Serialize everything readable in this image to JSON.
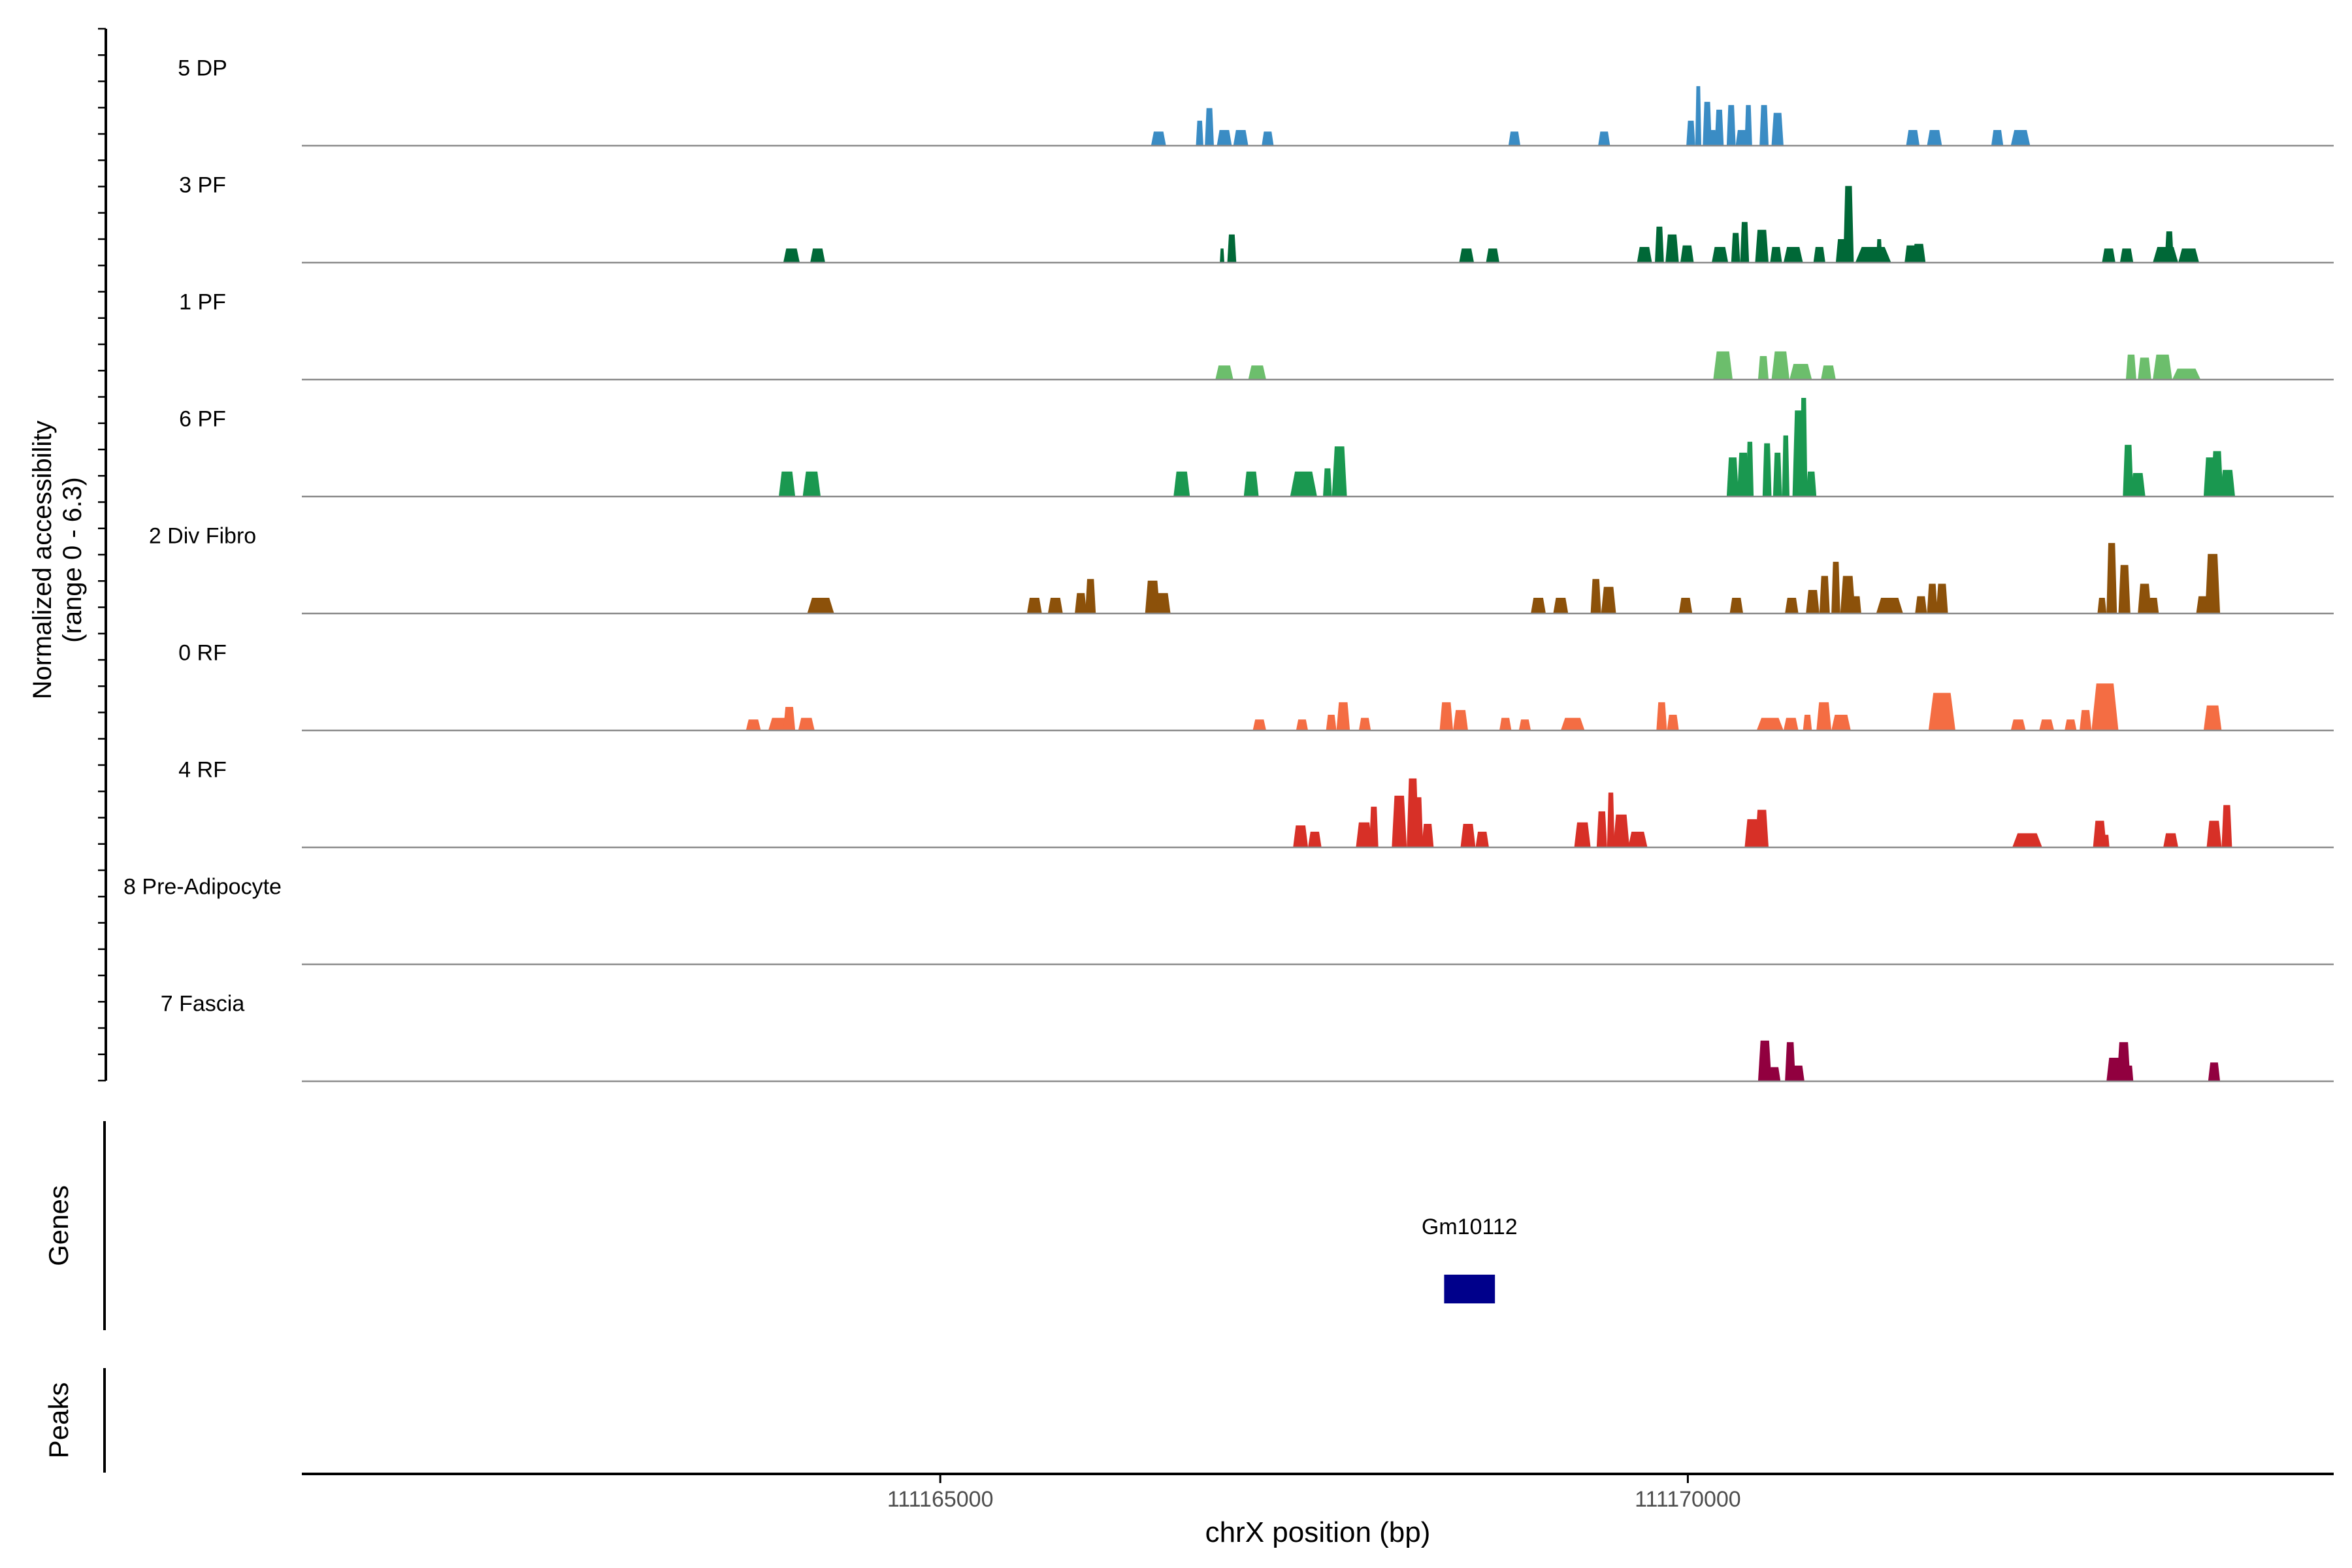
{
  "chart_data": {
    "type": "area",
    "genome": {
      "chromosome": "chrX",
      "xlim": [
        111160730,
        111174320
      ],
      "ticks": [
        111165000,
        111170000
      ],
      "tick_labels": [
        "111165000",
        "111170000"
      ]
    },
    "axes": {
      "xlabel": "chrX position (bp)",
      "ylabel_line1": "Normalized accessibility",
      "ylabel_line2": "(range 0 - 6.3)",
      "y_range": [
        0,
        6.3
      ],
      "genes_label": "Genes",
      "peaks_label": "Peaks"
    },
    "tracks": [
      {
        "name": "5 DP",
        "color": "#3A8CC4",
        "peaks": [
          [
            111166410,
            111166510,
            0.9
          ],
          [
            111166710,
            111166760,
            1.6
          ],
          [
            111166770,
            111166830,
            2.4
          ],
          [
            111166850,
            111166950,
            1.0
          ],
          [
            111166960,
            111167060,
            1.0
          ],
          [
            111167150,
            111167230,
            0.9
          ],
          [
            111168800,
            111168880,
            0.9
          ],
          [
            111169400,
            111169480,
            0.9
          ],
          [
            111169990,
            111170050,
            1.6
          ],
          [
            111170050,
            111170090,
            3.8
          ],
          [
            111170100,
            111170160,
            2.8
          ],
          [
            111170110,
            111170200,
            1.0
          ],
          [
            111170180,
            111170240,
            2.3
          ],
          [
            111170260,
            111170320,
            2.6
          ],
          [
            111170320,
            111170400,
            1.0
          ],
          [
            111170380,
            111170430,
            2.6
          ],
          [
            111170480,
            111170540,
            2.6
          ],
          [
            111170560,
            111170640,
            2.1
          ],
          [
            111171460,
            111171550,
            1.0
          ],
          [
            111171600,
            111171700,
            1.0
          ],
          [
            111172030,
            111172110,
            1.0
          ],
          [
            111172160,
            111172290,
            1.0
          ]
        ]
      },
      {
        "name": "3 PF",
        "color": "#006837",
        "peaks": [
          [
            111163950,
            111164060,
            0.9
          ],
          [
            111164130,
            111164230,
            0.9
          ],
          [
            111166870,
            111166900,
            0.9
          ],
          [
            111166920,
            111166980,
            1.8
          ],
          [
            111168470,
            111168570,
            0.9
          ],
          [
            111168650,
            111168740,
            0.9
          ],
          [
            111169660,
            111169760,
            1.0
          ],
          [
            111169780,
            111169840,
            2.3
          ],
          [
            111169850,
            111169940,
            1.8
          ],
          [
            111169950,
            111170040,
            1.1
          ],
          [
            111170160,
            111170270,
            1.0
          ],
          [
            111170290,
            111170350,
            1.9
          ],
          [
            111170350,
            111170410,
            2.6
          ],
          [
            111170450,
            111170540,
            2.1
          ],
          [
            111170550,
            111170630,
            1.0
          ],
          [
            111170640,
            111170770,
            1.0
          ],
          [
            111170840,
            111170920,
            1.0
          ],
          [
            111170990,
            111171070,
            1.5
          ],
          [
            111171040,
            111171110,
            4.9
          ],
          [
            111171120,
            111171360,
            1.0
          ],
          [
            111171260,
            111171300,
            1.5
          ],
          [
            111171450,
            111171530,
            1.1
          ],
          [
            111171500,
            111171590,
            1.2
          ],
          [
            111172770,
            111172860,
            0.9
          ],
          [
            111172890,
            111172980,
            0.9
          ],
          [
            111173110,
            111173280,
            1.0
          ],
          [
            111173190,
            111173250,
            2.0
          ],
          [
            111173280,
            111173420,
            0.9
          ]
        ]
      },
      {
        "name": "1 PF",
        "color": "#6CBE6C",
        "peaks": [
          [
            111166840,
            111166960,
            0.9
          ],
          [
            111167060,
            111167180,
            0.9
          ],
          [
            111170170,
            111170300,
            1.8
          ],
          [
            111170470,
            111170540,
            1.5
          ],
          [
            111170560,
            111170680,
            1.8
          ],
          [
            111170680,
            111170830,
            1.0
          ],
          [
            111170890,
            111170990,
            0.9
          ],
          [
            111172930,
            111173000,
            1.6
          ],
          [
            111173010,
            111173100,
            1.4
          ],
          [
            111173110,
            111173240,
            1.6
          ],
          [
            111173240,
            111173430,
            0.7
          ]
        ]
      },
      {
        "name": "6 PF",
        "color": "#1A9850",
        "peaks": [
          [
            111163920,
            111164030,
            1.6
          ],
          [
            111164080,
            111164200,
            1.6
          ],
          [
            111166560,
            111166670,
            1.6
          ],
          [
            111167030,
            111167130,
            1.6
          ],
          [
            111167340,
            111167520,
            1.6
          ],
          [
            111167560,
            111167620,
            1.8
          ],
          [
            111167620,
            111167720,
            3.2
          ],
          [
            111170260,
            111170340,
            2.5
          ],
          [
            111170330,
            111170410,
            2.8
          ],
          [
            111170390,
            111170440,
            3.5
          ],
          [
            111170500,
            111170560,
            3.4
          ],
          [
            111170570,
            111170630,
            2.8
          ],
          [
            111170630,
            111170680,
            3.9
          ],
          [
            111170700,
            111170790,
            5.5
          ],
          [
            111170750,
            111170800,
            6.3
          ],
          [
            111170790,
            111170860,
            1.6
          ],
          [
            111172910,
            111172980,
            3.3
          ],
          [
            111172960,
            111173060,
            1.5
          ],
          [
            111173450,
            111173540,
            2.5
          ],
          [
            111173500,
            111173580,
            2.9
          ],
          [
            111173560,
            111173660,
            1.7
          ]
        ]
      },
      {
        "name": "2 Div Fibro",
        "color": "#8C510A",
        "peaks": [
          [
            111164110,
            111164290,
            1.0
          ],
          [
            111165580,
            111165680,
            1.0
          ],
          [
            111165720,
            111165820,
            1.0
          ],
          [
            111165900,
            111165980,
            1.3
          ],
          [
            111165970,
            111166040,
            2.2
          ],
          [
            111166370,
            111166470,
            2.1
          ],
          [
            111166440,
            111166540,
            1.3
          ],
          [
            111168950,
            111169050,
            1.0
          ],
          [
            111169100,
            111169200,
            1.0
          ],
          [
            111169350,
            111169420,
            2.2
          ],
          [
            111169420,
            111169520,
            1.7
          ],
          [
            111169940,
            111170030,
            1.0
          ],
          [
            111170280,
            111170370,
            1.0
          ],
          [
            111170650,
            111170740,
            1.0
          ],
          [
            111170790,
            111170880,
            1.5
          ],
          [
            111170880,
            111170950,
            2.4
          ],
          [
            111170960,
            111171020,
            3.3
          ],
          [
            111171020,
            111171120,
            2.4
          ],
          [
            111171100,
            111171160,
            1.1
          ],
          [
            111171260,
            111171440,
            1.0
          ],
          [
            111171520,
            111171600,
            1.1
          ],
          [
            111171600,
            111171670,
            1.9
          ],
          [
            111171660,
            111171740,
            1.9
          ],
          [
            111172740,
            111172800,
            1.0
          ],
          [
            111172800,
            111172870,
            4.5
          ],
          [
            111172880,
            111172960,
            3.1
          ],
          [
            111173010,
            111173100,
            1.9
          ],
          [
            111173080,
            111173150,
            1.0
          ],
          [
            111173400,
            111173490,
            1.1
          ],
          [
            111173460,
            111173560,
            3.8
          ]
        ]
      },
      {
        "name": "0 RF",
        "color": "#F46D43",
        "peaks": [
          [
            111163700,
            111163800,
            0.7
          ],
          [
            111163850,
            111163990,
            0.8
          ],
          [
            111163950,
            111164030,
            1.5
          ],
          [
            111164050,
            111164160,
            0.8
          ],
          [
            111167090,
            111167180,
            0.7
          ],
          [
            111167380,
            111167460,
            0.7
          ],
          [
            111167580,
            111167650,
            1.0
          ],
          [
            111167650,
            111167740,
            1.8
          ],
          [
            111167800,
            111167880,
            0.8
          ],
          [
            111168340,
            111168430,
            1.8
          ],
          [
            111168430,
            111168530,
            1.3
          ],
          [
            111168740,
            111168820,
            0.8
          ],
          [
            111168870,
            111168950,
            0.7
          ],
          [
            111169150,
            111169310,
            0.8
          ],
          [
            111169790,
            111169860,
            1.8
          ],
          [
            111169860,
            111169940,
            1.0
          ],
          [
            111170460,
            111170640,
            0.8
          ],
          [
            111170640,
            111170740,
            0.8
          ],
          [
            111170770,
            111170830,
            1.0
          ],
          [
            111170860,
            111170960,
            1.8
          ],
          [
            111170960,
            111171090,
            1.0
          ],
          [
            111171610,
            111171790,
            2.4
          ],
          [
            111172160,
            111172260,
            0.7
          ],
          [
            111172350,
            111172450,
            0.7
          ],
          [
            111172520,
            111172600,
            0.7
          ],
          [
            111172620,
            111172700,
            1.3
          ],
          [
            111172700,
            111172880,
            3.0
          ],
          [
            111173450,
            111173570,
            1.6
          ]
        ]
      },
      {
        "name": "4 RF",
        "color": "#D73027",
        "peaks": [
          [
            111167360,
            111167460,
            1.4
          ],
          [
            111167460,
            111167550,
            1.0
          ],
          [
            111167780,
            111167890,
            1.6
          ],
          [
            111167870,
            111167930,
            2.6
          ],
          [
            111168020,
            111168120,
            3.3
          ],
          [
            111168120,
            111168200,
            4.4
          ],
          [
            111168160,
            111168230,
            3.2
          ],
          [
            111168220,
            111168300,
            1.5
          ],
          [
            111168480,
            111168580,
            1.5
          ],
          [
            111168580,
            111168670,
            1.0
          ],
          [
            111169240,
            111169350,
            1.6
          ],
          [
            111169390,
            111169460,
            2.3
          ],
          [
            111169460,
            111169510,
            3.5
          ],
          [
            111169500,
            111169610,
            2.1
          ],
          [
            111169600,
            111169730,
            1.0
          ],
          [
            111170380,
            111170480,
            1.8
          ],
          [
            111170450,
            111170540,
            2.4
          ],
          [
            111172170,
            111172370,
            0.9
          ],
          [
            111172710,
            111172800,
            1.7
          ],
          [
            111172780,
            111172820,
            0.8
          ],
          [
            111173180,
            111173280,
            0.9
          ],
          [
            111173470,
            111173570,
            1.7
          ],
          [
            111173570,
            111173640,
            2.7
          ]
        ]
      },
      {
        "name": "8 Pre-Adipocyte",
        "color": "#737373",
        "peaks": []
      },
      {
        "name": "7 Fascia",
        "color": "#91003F",
        "peaks": [
          [
            111170470,
            111170560,
            2.6
          ],
          [
            111170540,
            111170620,
            0.9
          ],
          [
            111170650,
            111170720,
            2.5
          ],
          [
            111170700,
            111170780,
            1.0
          ],
          [
            111172800,
            111172900,
            1.5
          ],
          [
            111172870,
            111172960,
            2.5
          ],
          [
            111172930,
            111172980,
            1.0
          ],
          [
            111173480,
            111173560,
            1.2
          ]
        ]
      }
    ],
    "genes": [
      {
        "name": "Gm10112",
        "start": 111168370,
        "end": 111168710,
        "color": "#00008B"
      }
    ],
    "peaks_track": []
  }
}
